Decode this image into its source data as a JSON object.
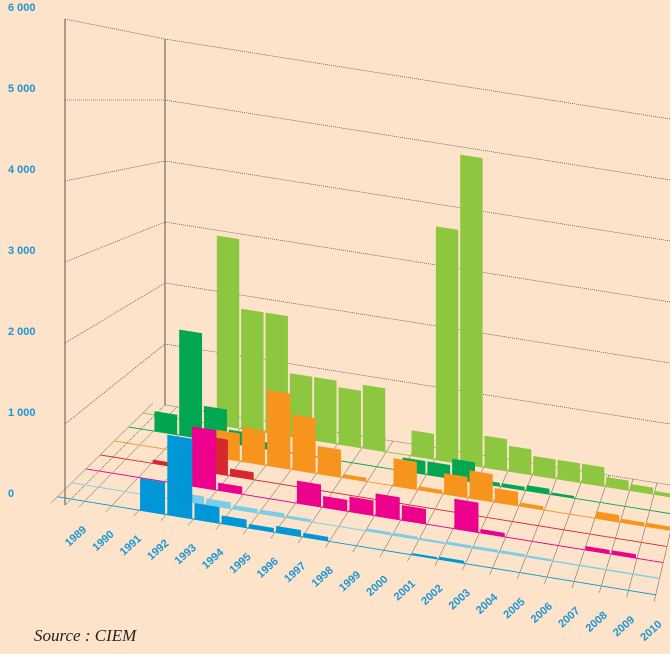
{
  "chart_data": {
    "type": "bar3d",
    "source": "Source : CIEM",
    "categories": [
      "1989",
      "1990",
      "1991",
      "1992",
      "1993",
      "1994",
      "1995",
      "1996",
      "1997",
      "1998",
      "1999",
      "2000",
      "2001",
      "2002",
      "2003",
      "2004",
      "2005",
      "2006",
      "2007",
      "2008",
      "2009",
      "2010"
    ],
    "ylim": [
      0,
      6000
    ],
    "yticks": [
      {
        "value": 0,
        "label": "0"
      },
      {
        "value": 1000,
        "label": "1 000"
      },
      {
        "value": 2000,
        "label": "2 000"
      },
      {
        "value": 3000,
        "label": "3 000"
      },
      {
        "value": 4000,
        "label": "4 000"
      },
      {
        "value": 5000,
        "label": "5 000"
      },
      {
        "value": 6000,
        "label": "6 000"
      }
    ],
    "grid": true,
    "series": [
      {
        "color": "#8dc63f",
        "values": [
          0,
          0,
          0,
          3000,
          1900,
          1900,
          1000,
          1000,
          900,
          1000,
          0,
          400,
          3700,
          4900,
          500,
          400,
          300,
          300,
          300,
          150,
          100,
          50
        ]
      },
      {
        "color": "#00a651",
        "values": [
          0,
          300,
          1600,
          500,
          200,
          100,
          0,
          0,
          0,
          0,
          0,
          200,
          200,
          300,
          50,
          50,
          80,
          30,
          0,
          0,
          0,
          0
        ]
      },
      {
        "color": "#f7941d",
        "values": [
          0,
          0,
          0,
          50,
          400,
          500,
          1100,
          800,
          400,
          50,
          0,
          400,
          50,
          300,
          400,
          200,
          50,
          0,
          0,
          100,
          50,
          50
        ]
      },
      {
        "color": "#d7282f",
        "values": [
          0,
          0,
          50,
          200,
          500,
          100,
          0,
          0,
          0,
          0,
          0,
          0,
          0,
          0,
          0,
          0,
          0,
          0,
          0,
          0,
          0,
          0
        ]
      },
      {
        "color": "#ec008c",
        "values": [
          0,
          0,
          0,
          0,
          800,
          100,
          0,
          0,
          300,
          150,
          200,
          300,
          200,
          0,
          400,
          50,
          0,
          0,
          0,
          50,
          50,
          0
        ]
      },
      {
        "color": "#7ccde8",
        "values": [
          0,
          0,
          0,
          0,
          100,
          80,
          50,
          50,
          30,
          0,
          0,
          30,
          30,
          20,
          30,
          30,
          30,
          20,
          10,
          10,
          10,
          10
        ]
      },
      {
        "color": "#0097d8",
        "values": [
          0,
          0,
          0,
          400,
          1000,
          200,
          100,
          50,
          80,
          50,
          0,
          0,
          0,
          20,
          30,
          0,
          0,
          0,
          0,
          0,
          0,
          0
        ]
      }
    ]
  }
}
